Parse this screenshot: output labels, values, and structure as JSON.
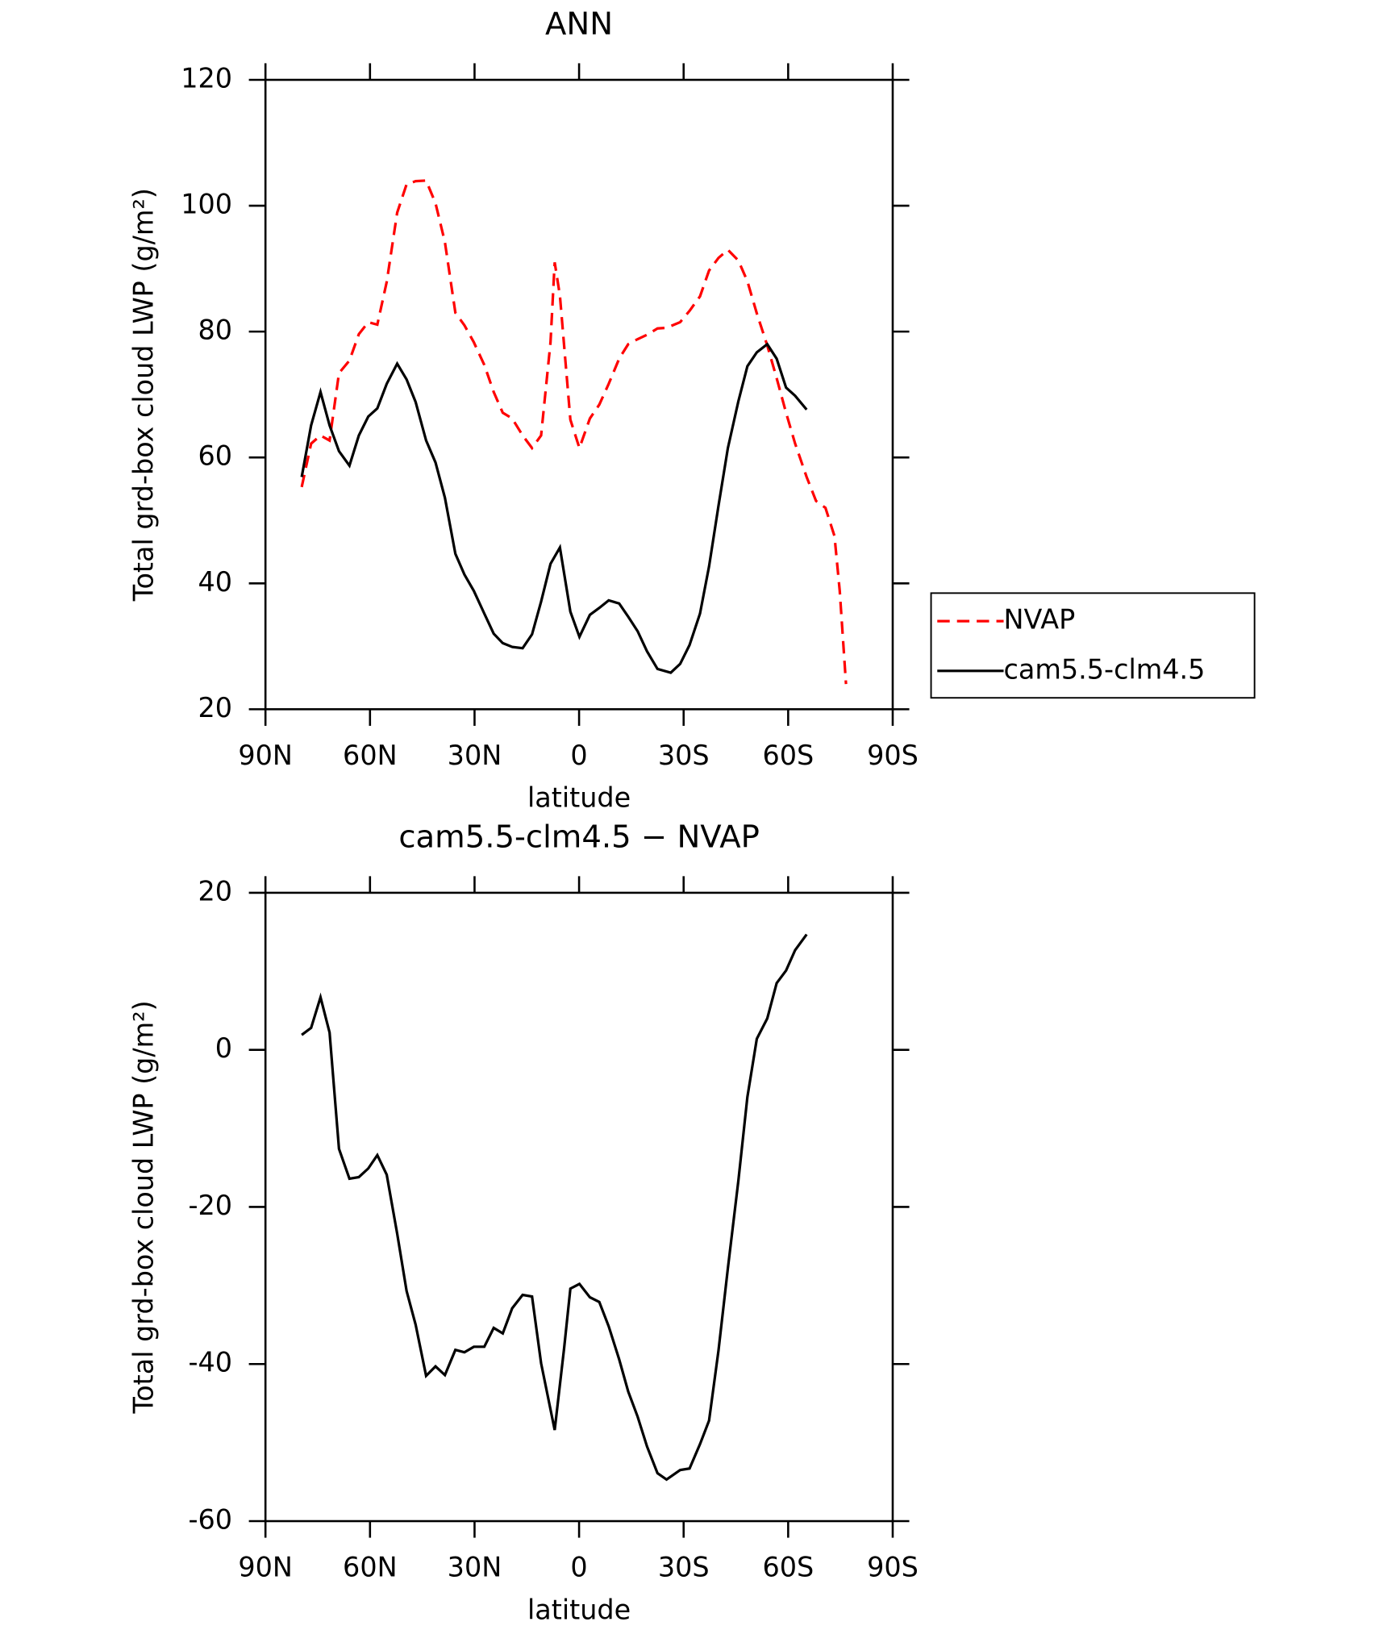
{
  "chart_data": [
    {
      "type": "line",
      "title": "ANN",
      "xlabel": "latitude",
      "ylabel": "Total grd-box cloud LWP (g/m²)",
      "xlim": [
        90,
        -90
      ],
      "xticks": [
        {
          "value": 90,
          "label": "90N"
        },
        {
          "value": 60,
          "label": "60N"
        },
        {
          "value": 30,
          "label": "30N"
        },
        0,
        {
          "value": -30,
          "label": "30S"
        },
        {
          "value": -60,
          "label": "60S"
        },
        {
          "value": -90,
          "label": "90S"
        }
      ],
      "ylim": [
        20,
        120
      ],
      "yticks": [
        20,
        40,
        60,
        80,
        100,
        120
      ],
      "legend": "right",
      "series": [
        {
          "name": "NVAP",
          "color": "#ff0000",
          "dashed": true,
          "x": [
            79.6,
            76.9,
            74.2,
            71.6,
            68.9,
            65.9,
            63.2,
            60.5,
            57.9,
            55.2,
            52.2,
            49.5,
            46.9,
            43.9,
            41.2,
            38.5,
            35.5,
            32.9,
            30.2,
            27.2,
            24.5,
            21.9,
            19.2,
            16.2,
            13.5,
            10.9,
            8.2,
            7.0,
            5.5,
            2.5,
            -0.1,
            -3.1,
            -5.8,
            -8.5,
            -11.5,
            -14.1,
            -16.8,
            -19.5,
            -22.5,
            -25.1,
            -29.0,
            -31.7,
            -34.7,
            -37.3,
            -40.0,
            -42.7,
            -45.7,
            -48.3,
            -51.0,
            -54.0,
            -56.7,
            -59.4,
            -62.0,
            -65.3,
            -68.0,
            -70.7,
            -73.3,
            -74.8,
            -76.6
          ],
          "values": [
            55.3,
            62.2,
            63.5,
            62.7,
            73.4,
            75.4,
            79.6,
            81.5,
            81.1,
            87.9,
            98.9,
            103.4,
            103.9,
            104.0,
            100.4,
            94.2,
            83.0,
            81.0,
            78.3,
            74.7,
            70.4,
            67.1,
            66.2,
            63.5,
            61.5,
            63.5,
            78.3,
            91.0,
            85.7,
            66.0,
            61.5,
            66.2,
            68.4,
            71.7,
            75.7,
            78.0,
            78.8,
            79.5,
            80.5,
            80.6,
            81.5,
            83.3,
            85.6,
            89.7,
            91.7,
            93.0,
            91.3,
            88.0,
            82.9,
            77.8,
            72.6,
            67.1,
            62.2,
            56.9,
            53.1,
            52.0,
            47.5,
            38.8,
            24.0
          ]
        },
        {
          "name": "cam5.5-clm4.5",
          "color": "#000000",
          "dashed": false,
          "x": [
            79.6,
            76.9,
            74.2,
            71.6,
            68.9,
            65.9,
            63.2,
            60.5,
            57.9,
            55.2,
            52.2,
            49.5,
            46.9,
            43.9,
            41.2,
            38.5,
            35.5,
            32.9,
            30.2,
            27.2,
            24.5,
            21.9,
            19.2,
            16.2,
            13.5,
            10.9,
            8.2,
            5.5,
            2.5,
            -0.1,
            -3.1,
            -5.8,
            -8.5,
            -11.5,
            -14.1,
            -16.8,
            -19.5,
            -22.5,
            -26.3,
            -29.0,
            -31.7,
            -34.7,
            -37.3,
            -40.0,
            -42.7,
            -45.7,
            -48.3,
            -51.0,
            -54.0,
            -56.7,
            -59.4,
            -62.0,
            -65.3
          ],
          "values": [
            56.9,
            65.1,
            70.4,
            65.1,
            61.0,
            58.7,
            63.5,
            66.5,
            67.8,
            71.7,
            74.9,
            72.4,
            68.8,
            62.7,
            59.2,
            53.6,
            44.7,
            41.4,
            38.8,
            35.2,
            32.0,
            30.5,
            29.9,
            29.7,
            31.9,
            37.1,
            43.1,
            45.7,
            35.5,
            31.5,
            35.0,
            36.1,
            37.3,
            36.8,
            34.7,
            32.4,
            29.2,
            26.4,
            25.8,
            27.2,
            30.2,
            35.2,
            42.7,
            52.3,
            61.5,
            68.9,
            74.5,
            76.7,
            78.0,
            75.7,
            71.1,
            69.8,
            67.6
          ]
        }
      ]
    },
    {
      "type": "line",
      "title": "cam5.5-clm4.5 − NVAP",
      "xlabel": "latitude",
      "ylabel": "Total grd-box cloud LWP (g/m²)",
      "xlim": [
        90,
        -90
      ],
      "xticks": [
        {
          "value": 90,
          "label": "90N"
        },
        {
          "value": 60,
          "label": "60N"
        },
        {
          "value": 30,
          "label": "30N"
        },
        0,
        {
          "value": -30,
          "label": "30S"
        },
        {
          "value": -60,
          "label": "60S"
        },
        {
          "value": -90,
          "label": "90S"
        }
      ],
      "ylim": [
        -60,
        20
      ],
      "yticks": [
        -60,
        -40,
        -20,
        0,
        20
      ],
      "series": [
        {
          "color": "#000000",
          "dashed": false,
          "x": [
            79.6,
            76.9,
            74.2,
            71.6,
            68.9,
            65.9,
            63.2,
            60.5,
            57.9,
            55.2,
            52.2,
            49.5,
            46.9,
            43.9,
            41.2,
            38.5,
            35.5,
            32.9,
            30.2,
            27.2,
            24.5,
            21.9,
            19.2,
            16.2,
            13.5,
            10.9,
            7.0,
            4.3,
            2.5,
            -0.1,
            -3.1,
            -5.8,
            -8.5,
            -11.5,
            -14.1,
            -16.8,
            -19.5,
            -22.5,
            -25.1,
            -29.0,
            -31.7,
            -34.7,
            -37.3,
            -40.0,
            -42.7,
            -45.7,
            -48.3,
            -51.0,
            -54.0,
            -56.7,
            -59.4,
            -62.0,
            -65.3
          ],
          "values": [
            1.9,
            2.8,
            6.7,
            2.2,
            -12.6,
            -16.4,
            -16.2,
            -15.1,
            -13.4,
            -15.9,
            -23.4,
            -30.7,
            -35.0,
            -41.5,
            -40.3,
            -41.4,
            -38.2,
            -38.5,
            -37.8,
            -37.8,
            -35.4,
            -36.1,
            -32.9,
            -31.2,
            -31.4,
            -39.9,
            -48.4,
            -38.0,
            -30.4,
            -29.8,
            -31.5,
            -32.1,
            -35.2,
            -39.4,
            -43.5,
            -46.7,
            -50.5,
            -53.9,
            -54.7,
            -53.5,
            -53.3,
            -50.2,
            -47.2,
            -38.3,
            -27.8,
            -16.7,
            -6.0,
            1.4,
            4.0,
            8.5,
            10.1,
            12.7,
            14.7
          ]
        }
      ]
    }
  ]
}
